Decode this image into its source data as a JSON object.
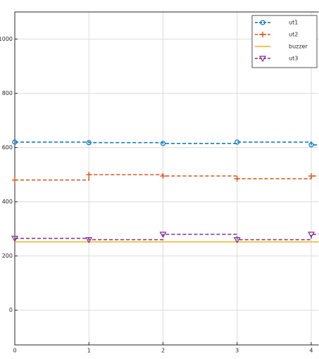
{
  "chart_data": {
    "type": "line",
    "drawstyle": "steps-post",
    "x": [
      0,
      1,
      2,
      3,
      4
    ],
    "xlim": [
      0,
      4.1
    ],
    "xticks": [
      0,
      1,
      2,
      3,
      4
    ],
    "ylim": [
      -128,
      1100
    ],
    "yticks": [
      0,
      200,
      400,
      600,
      800,
      1000
    ],
    "grid": true,
    "legend": "upper right",
    "series": [
      {
        "name": "ut1",
        "color": "#0072bd",
        "linestyle": "dashed",
        "marker": "circle",
        "values": [
          620,
          618,
          615,
          620,
          610
        ]
      },
      {
        "name": "ut2",
        "color": "#d95319",
        "linestyle": "dashed",
        "marker": "plus",
        "values": [
          480,
          500,
          495,
          485,
          495
        ]
      },
      {
        "name": "buzzer",
        "color": "#edb120",
        "linestyle": "solid",
        "marker": "none",
        "values": [
          252,
          252,
          252,
          252,
          252
        ]
      },
      {
        "name": "ut3",
        "color": "#7e2f8e",
        "linestyle": "dashed",
        "marker": "triangle-down",
        "values": [
          265,
          260,
          280,
          260,
          280
        ]
      }
    ]
  }
}
